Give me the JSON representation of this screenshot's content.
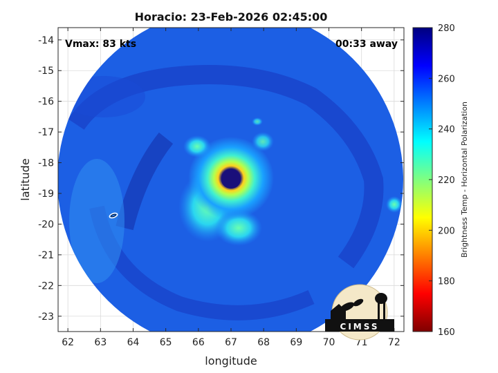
{
  "title": "Horacio: 23-Feb-2026 02:45:00",
  "annotations": {
    "vmax": "Vmax: 83 kts",
    "away": "00:33 away"
  },
  "axes": {
    "xlabel": "longitude",
    "ylabel": "latitude",
    "xticks": [
      "62",
      "63",
      "64",
      "65",
      "66",
      "67",
      "68",
      "69",
      "70",
      "71",
      "72"
    ],
    "yticks": [
      "-14",
      "-15",
      "-16",
      "-17",
      "-18",
      "-19",
      "-20",
      "-21",
      "-22",
      "-23"
    ],
    "xlim": [
      61.7,
      72.3
    ],
    "ylim": [
      -23.5,
      -13.6
    ],
    "grid": true
  },
  "colorbar": {
    "label": "Brightness Temp - Horizontal Polarization",
    "ticks": [
      "280",
      "260",
      "240",
      "220",
      "200",
      "180",
      "160"
    ],
    "range": [
      160,
      280
    ],
    "colormap": "jet"
  },
  "storm": {
    "center_lon": 67.0,
    "center_lat": -18.55,
    "eye_color": "#1a0f7a"
  },
  "logo": {
    "text": "CIMSS"
  }
}
